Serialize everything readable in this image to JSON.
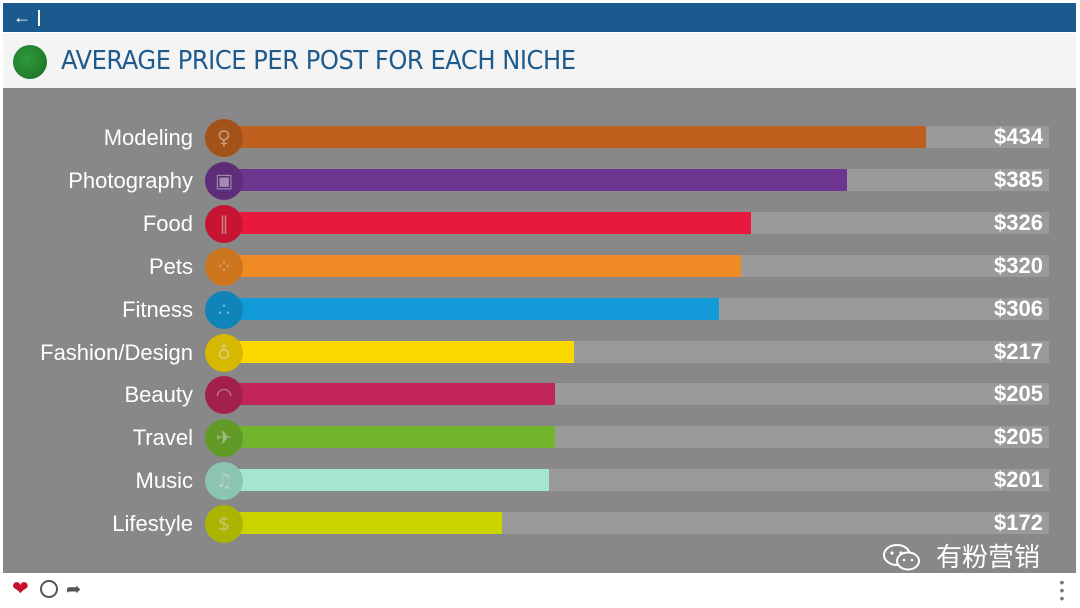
{
  "topbar": {
    "back_icon": "back-arrow-icon"
  },
  "header": {
    "title": "AVERAGE PRICE PER POST FOR EACH NICHE"
  },
  "chart_data": {
    "type": "bar",
    "orientation": "horizontal",
    "title": "AVERAGE PRICE PER POST FOR EACH NICHE",
    "xlim": [
      0,
      510
    ],
    "categories": [
      "Modeling",
      "Photography",
      "Food",
      "Pets",
      "Fitness",
      "Fashion/Design",
      "Beauty",
      "Travel",
      "Music",
      "Lifestyle"
    ],
    "values": [
      434,
      385,
      326,
      320,
      306,
      217,
      205,
      205,
      201,
      172
    ],
    "value_labels": [
      "$434",
      "$385",
      "$326",
      "$320",
      "$306",
      "$217",
      "$205",
      "$205",
      "$201",
      "$172"
    ],
    "colors": [
      "#c0601e",
      "#6d3590",
      "#e8193c",
      "#f08a24",
      "#129bd8",
      "#fbd800",
      "#c0245a",
      "#72b52d",
      "#a5e6d3",
      "#c9d400"
    ],
    "icons": [
      "model-icon",
      "camera-icon",
      "utensils-icon",
      "paw-icon",
      "bicycle-icon",
      "dress-icon",
      "lips-icon",
      "airplane-icon",
      "music-note-icon",
      "money-bag-icon"
    ],
    "track_color": "#9a9a9a",
    "background": "#888888"
  },
  "footer": {
    "like_icon": "heart-icon",
    "comment_icon": "comment-icon",
    "share_icon": "share-icon",
    "more_icon": "more-icon"
  },
  "watermark": {
    "text": "有粉营销"
  }
}
